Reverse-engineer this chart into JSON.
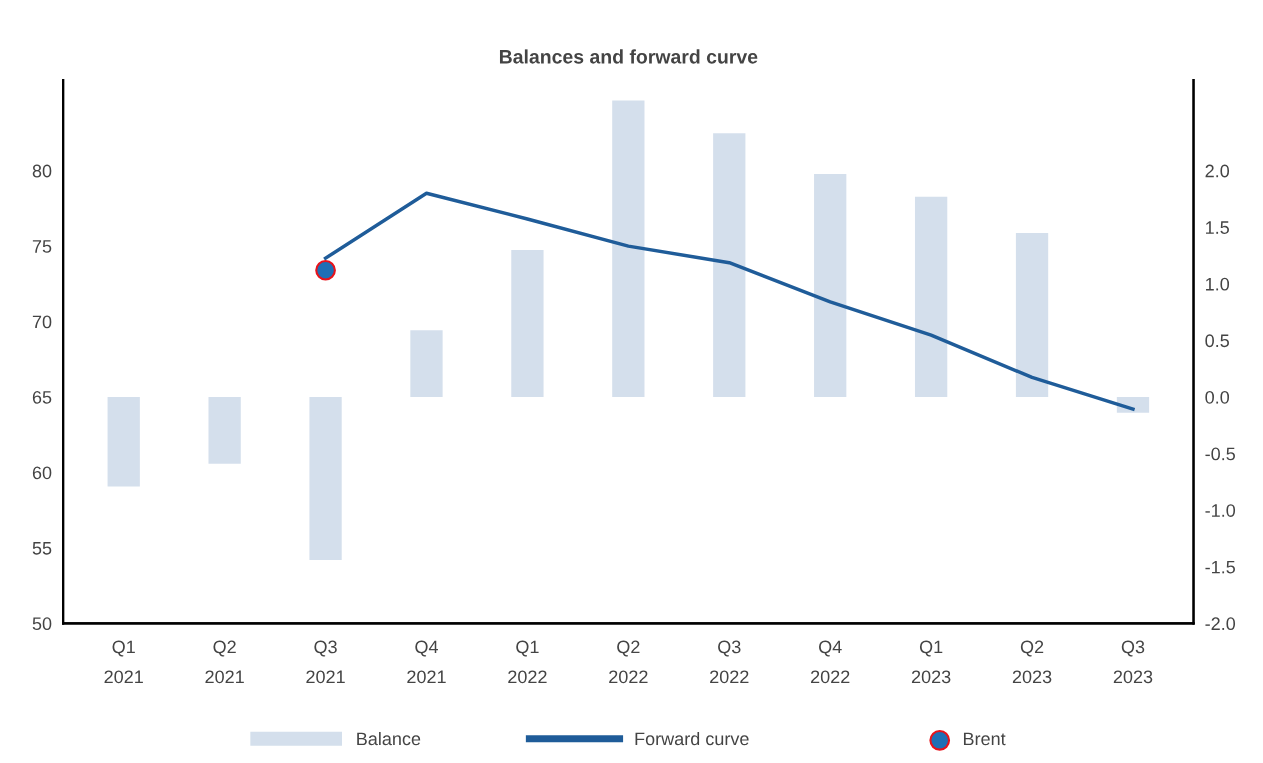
{
  "chart_data": {
    "type": "bar",
    "title": "Balances and forward curve",
    "categories": [
      "Q1\n2021",
      "Q2\n2021",
      "Q3\n2021",
      "Q4\n2021",
      "Q1\n2022",
      "Q2\n2022",
      "Q3\n2022",
      "Q4\n2022",
      "Q1\n2023",
      "Q2\n2023",
      "Q3\n2023"
    ],
    "series": [
      {
        "name": "Balance",
        "axis": "y2",
        "color": "#d4dfec",
        "values": [
          -0.79,
          -0.59,
          -1.44,
          0.59,
          1.3,
          2.62,
          2.33,
          1.97,
          1.77,
          1.45,
          -0.14
        ]
      },
      {
        "name": "Forward curve",
        "type": "line",
        "axis": "y",
        "color": "#1f5c99",
        "values": [
          null,
          null,
          74.2,
          78.5,
          76.8,
          75.0,
          73.9,
          71.3,
          69.1,
          66.3,
          64.2
        ]
      },
      {
        "name": "Brent",
        "type": "scatter",
        "axis": "y",
        "color": "#1f6fb5",
        "marker": "circle",
        "values": [
          null,
          null,
          73.4,
          null,
          null,
          null,
          null,
          null,
          null,
          null,
          null
        ]
      }
    ],
    "ylim": [
      50,
      86
    ],
    "yticks": [
      50,
      55,
      60,
      65,
      70,
      75,
      80
    ],
    "y2lim": [
      -2,
      2.8
    ],
    "y2ticks": [
      {
        "value": -2,
        "label": "-2.0"
      },
      {
        "value": -1.5,
        "label": "-1.5"
      },
      {
        "value": -1,
        "label": "-1.0"
      },
      {
        "value": -0.5,
        "label": "-0.5"
      },
      {
        "value": 0,
        "label": "0.0"
      },
      {
        "value": 0.5,
        "label": "0.5"
      },
      {
        "value": 1,
        "label": "1.0"
      },
      {
        "value": 1.5,
        "label": "1.5"
      },
      {
        "value": 2,
        "label": "2.0"
      }
    ],
    "grid": false,
    "legend": "bottom",
    "line_style": "solid"
  }
}
